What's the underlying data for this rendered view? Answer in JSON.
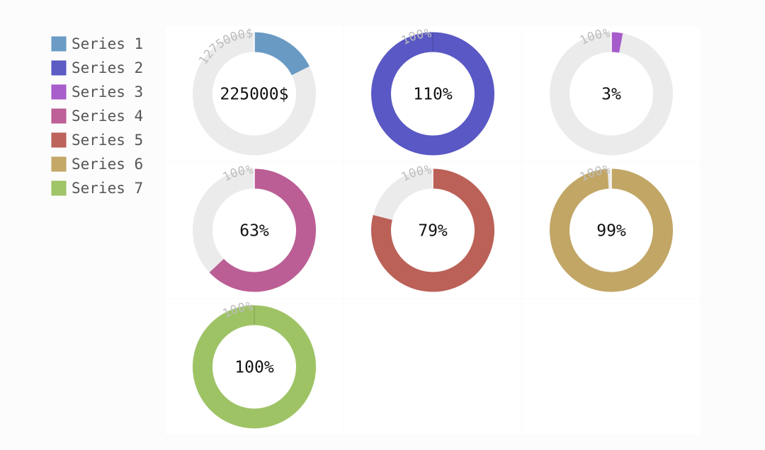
{
  "chart_data": {
    "type": "gauge",
    "legend_position": "top-left",
    "series": [
      {
        "name": "Series 1",
        "value": 225000,
        "value_label": "225000$",
        "max": 1275000,
        "max_label": "1275000$",
        "color": "#6497c2"
      },
      {
        "name": "Series 2",
        "value": 110,
        "value_label": "110%",
        "max": 100,
        "max_label": "100%",
        "color": "#5453c2"
      },
      {
        "name": "Series 3",
        "value": 3,
        "value_label": "3%",
        "max": 100,
        "max_label": "100%",
        "color": "#a356c8"
      },
      {
        "name": "Series 4",
        "value": 63,
        "value_label": "63%",
        "max": 100,
        "max_label": "100%",
        "color": "#b95992"
      },
      {
        "name": "Series 5",
        "value": 79,
        "value_label": "79%",
        "max": 100,
        "max_label": "100%",
        "color": "#b95c53"
      },
      {
        "name": "Series 6",
        "value": 99,
        "value_label": "99%",
        "max": 100,
        "max_label": "100%",
        "color": "#c0a360"
      },
      {
        "name": "Series 7",
        "value": 100,
        "value_label": "100%",
        "max": 100,
        "max_label": "100%",
        "color": "#9bc160"
      }
    ]
  }
}
